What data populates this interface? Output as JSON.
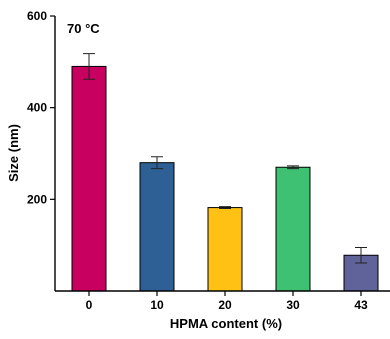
{
  "chart_data": {
    "type": "bar",
    "annotation": "70 °C",
    "xlabel": "HPMA content (%)",
    "ylabel": "Size (nm)",
    "categories": [
      "0",
      "10",
      "20",
      "30",
      "43"
    ],
    "values": [
      490,
      280,
      182,
      270,
      78
    ],
    "errors": [
      28,
      13,
      2,
      3,
      17
    ],
    "ylim": [
      0,
      600
    ],
    "yticks": [
      200,
      400,
      600
    ],
    "colors": [
      "#C8005F",
      "#2E6096",
      "#FFC114",
      "#3EC173",
      "#5F639A"
    ],
    "grid": false,
    "legend": "none"
  }
}
